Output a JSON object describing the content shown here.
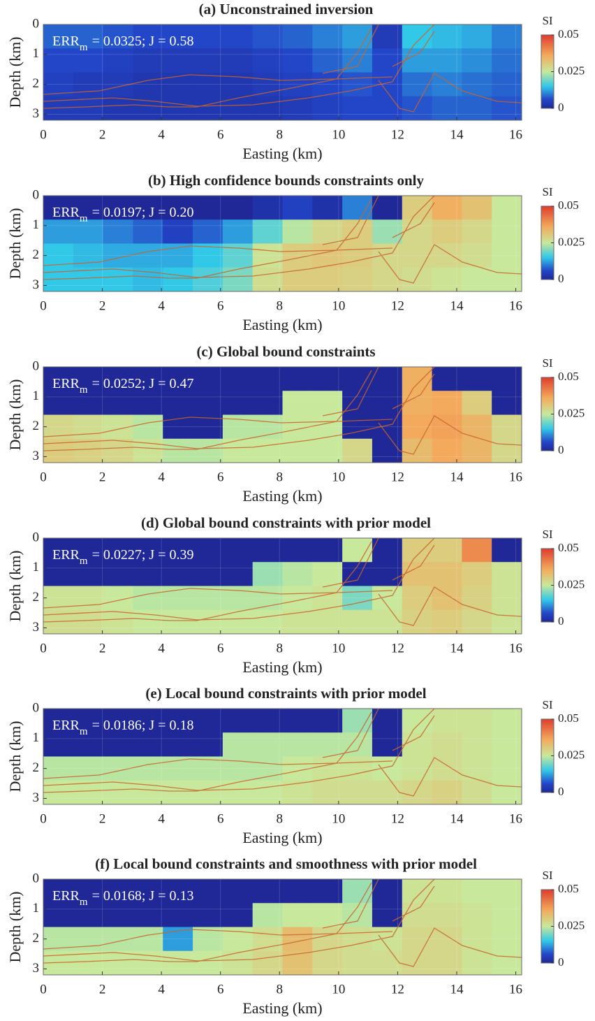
{
  "chart_data": [
    {
      "type": "heatmap",
      "title": "(a) Unconstrained inversion",
      "annotation": {
        "main": "ERR",
        "sub": "m",
        "rest": "= 0.0325;   J = 0.58"
      },
      "xlabel": "Easting (km)",
      "ylabel": "Depth (km)",
      "xlim": [
        0,
        16.2
      ],
      "xticks": [
        0,
        2,
        4,
        6,
        8,
        10,
        12,
        14,
        16
      ],
      "ylim": [
        3.2,
        0
      ],
      "yticks": [
        0,
        1,
        2,
        3
      ],
      "grid": true,
      "colormap": "jet",
      "colorbar": {
        "label": "SI",
        "lim": [
          0,
          0.05
        ],
        "ticks": [
          0,
          0.025,
          0.05
        ]
      },
      "values": [
        [
          0.008,
          0.008,
          0.007,
          0.006,
          0.006,
          0.006,
          0.006,
          0.007,
          0.008,
          0.01,
          0.012,
          0.004,
          0.015,
          0.014,
          0.013,
          0.01
        ],
        [
          0.006,
          0.006,
          0.005,
          0.004,
          0.004,
          0.004,
          0.004,
          0.005,
          0.006,
          0.008,
          0.01,
          0.006,
          0.012,
          0.012,
          0.011,
          0.009
        ],
        [
          0.005,
          0.004,
          0.004,
          0.003,
          0.003,
          0.003,
          0.003,
          0.004,
          0.005,
          0.006,
          0.007,
          0.006,
          0.009,
          0.01,
          0.009,
          0.008
        ],
        [
          0.004,
          0.004,
          0.003,
          0.003,
          0.003,
          0.003,
          0.003,
          0.003,
          0.004,
          0.005,
          0.006,
          0.006,
          0.007,
          0.008,
          0.008,
          0.007
        ]
      ]
    },
    {
      "type": "heatmap",
      "title": "(b) High confidence bounds constraints only",
      "annotation": {
        "main": "ERR",
        "sub": "m",
        "rest": "= 0.0197;   J = 0.20"
      },
      "xlabel": "Easting (km)",
      "ylabel": "Depth (km)",
      "xlim": [
        0,
        16.2
      ],
      "xticks": [
        0,
        2,
        4,
        6,
        8,
        10,
        12,
        14,
        16
      ],
      "ylim": [
        3.2,
        0
      ],
      "yticks": [
        0,
        1,
        2,
        3
      ],
      "grid": true,
      "colormap": "jet",
      "colorbar": {
        "label": "SI",
        "lim": [
          0,
          0.05
        ],
        "ticks": [
          0,
          0.025,
          0.05
        ]
      },
      "values": [
        [
          0,
          0,
          0,
          0,
          0,
          0,
          0,
          0.002,
          0.005,
          0.002,
          0.01,
          0,
          0.03,
          0.035,
          0.032,
          0.025
        ],
        [
          0.012,
          0.012,
          0.01,
          0.008,
          0.005,
          0.008,
          0.012,
          0.018,
          0.024,
          0.028,
          0.03,
          0.022,
          0.028,
          0.03,
          0.028,
          0.025
        ],
        [
          0.015,
          0.014,
          0.013,
          0.013,
          0.013,
          0.015,
          0.018,
          0.026,
          0.03,
          0.031,
          0.03,
          0.028,
          0.028,
          0.028,
          0.027,
          0.025
        ],
        [
          0.015,
          0.015,
          0.015,
          0.014,
          0.015,
          0.017,
          0.02,
          0.027,
          0.03,
          0.03,
          0.029,
          0.028,
          0.027,
          0.026,
          0.025,
          0.025
        ]
      ]
    },
    {
      "type": "heatmap",
      "title": "(c) Global bound constraints",
      "annotation": {
        "main": "ERR",
        "sub": "m",
        "rest": "= 0.0252;   J = 0.47"
      },
      "xlabel": "Easting (km)",
      "ylabel": "Depth (km)",
      "xlim": [
        0,
        16.2
      ],
      "xticks": [
        0,
        2,
        4,
        6,
        8,
        10,
        12,
        14,
        16
      ],
      "ylim": [
        3.2,
        0
      ],
      "yticks": [
        0,
        1,
        2,
        3
      ],
      "grid": true,
      "colormap": "jet",
      "colorbar": {
        "label": "SI",
        "lim": [
          0,
          0.05
        ],
        "ticks": [
          0,
          0.025,
          0.05
        ]
      },
      "values": [
        [
          0,
          0,
          0,
          0,
          0,
          0,
          0,
          0,
          0,
          0,
          0,
          0,
          0.035,
          0,
          0,
          0
        ],
        [
          0,
          0,
          0,
          0,
          0,
          0,
          0,
          0,
          0.025,
          0.025,
          0,
          0,
          0.035,
          0.036,
          0.03,
          0
        ],
        [
          0.028,
          0.027,
          0.026,
          0.024,
          0,
          0,
          0.024,
          0.024,
          0.025,
          0.025,
          0,
          0,
          0.036,
          0.037,
          0.034,
          0.028
        ],
        [
          0.03,
          0.029,
          0.028,
          0.026,
          0.024,
          0.024,
          0.025,
          0.025,
          0.025,
          0.025,
          0.028,
          0,
          0.033,
          0.036,
          0.034,
          0.028
        ]
      ]
    },
    {
      "type": "heatmap",
      "title": "(d) Global bound constraints with prior model",
      "annotation": {
        "main": "ERR",
        "sub": "m",
        "rest": "= 0.0227;   J = 0.39"
      },
      "xlabel": "Easting (km)",
      "ylabel": "Depth (km)",
      "xlim": [
        0,
        16.2
      ],
      "xticks": [
        0,
        2,
        4,
        6,
        8,
        10,
        12,
        14,
        16
      ],
      "ylim": [
        3.2,
        0
      ],
      "yticks": [
        0,
        1,
        2,
        3
      ],
      "grid": true,
      "colormap": "jet",
      "colorbar": {
        "label": "SI",
        "lim": [
          0,
          0.05
        ],
        "ticks": [
          0,
          0.025,
          0.05
        ]
      },
      "values": [
        [
          0,
          0,
          0,
          0,
          0,
          0,
          0,
          0,
          0,
          0,
          0.025,
          0,
          0.03,
          0.03,
          0.04,
          0
        ],
        [
          0,
          0,
          0,
          0,
          0,
          0,
          0,
          0.022,
          0.024,
          0.025,
          0,
          0,
          0.032,
          0.032,
          0.03,
          0.026
        ],
        [
          0.026,
          0.026,
          0.025,
          0.024,
          0.024,
          0.024,
          0.024,
          0.024,
          0.025,
          0.026,
          0.02,
          0.025,
          0.03,
          0.032,
          0.029,
          0.026
        ],
        [
          0.027,
          0.027,
          0.026,
          0.025,
          0.025,
          0.025,
          0.025,
          0.025,
          0.026,
          0.026,
          0.026,
          0.026,
          0.029,
          0.03,
          0.028,
          0.026
        ]
      ]
    },
    {
      "type": "heatmap",
      "title": "(e) Local bound constraints with prior model",
      "annotation": {
        "main": "ERR",
        "sub": "m",
        "rest": "= 0.0186;   J = 0.18"
      },
      "xlabel": "Easting (km)",
      "ylabel": "Depth (km)",
      "xlim": [
        0,
        16.2
      ],
      "xticks": [
        0,
        2,
        4,
        6,
        8,
        10,
        12,
        14,
        16
      ],
      "ylim": [
        3.2,
        0
      ],
      "yticks": [
        0,
        1,
        2,
        3
      ],
      "grid": true,
      "colormap": "jet",
      "colorbar": {
        "label": "SI",
        "lim": [
          0,
          0.05
        ],
        "ticks": [
          0,
          0.025,
          0.05
        ]
      },
      "values": [
        [
          0,
          0,
          0,
          0,
          0,
          0,
          0,
          0,
          0,
          0,
          0.022,
          0,
          0.025,
          0.026,
          0.026,
          0.025
        ],
        [
          0,
          0,
          0,
          0,
          0,
          0,
          0.024,
          0.024,
          0.024,
          0.024,
          0.024,
          0,
          0.026,
          0.027,
          0.026,
          0.025
        ],
        [
          0.024,
          0.024,
          0.024,
          0.024,
          0.024,
          0.024,
          0.024,
          0.024,
          0.025,
          0.026,
          0.026,
          0.025,
          0.026,
          0.027,
          0.026,
          0.025
        ],
        [
          0.025,
          0.025,
          0.025,
          0.025,
          0.025,
          0.025,
          0.025,
          0.025,
          0.026,
          0.027,
          0.027,
          0.027,
          0.028,
          0.029,
          0.027,
          0.025
        ]
      ]
    },
    {
      "type": "heatmap",
      "title": "(f) Local bound constraints and smoothness with prior model",
      "annotation": {
        "main": "ERR",
        "sub": "m",
        "rest": "= 0.0168;   J = 0.13"
      },
      "xlabel": "Easting (km)",
      "ylabel": "Depth (km)",
      "xlim": [
        0,
        16.2
      ],
      "xticks": [
        0,
        2,
        4,
        6,
        8,
        10,
        12,
        14,
        16
      ],
      "ylim": [
        3.2,
        0
      ],
      "yticks": [
        0,
        1,
        2,
        3
      ],
      "grid": true,
      "colormap": "jet",
      "colorbar": {
        "label": "SI",
        "lim": [
          0,
          0.05
        ],
        "ticks": [
          0,
          0.025,
          0.05
        ]
      },
      "values": [
        [
          0,
          0,
          0,
          0,
          0,
          0,
          0,
          0,
          0,
          0,
          0.022,
          0,
          0.026,
          0.026,
          0.025,
          0.025
        ],
        [
          0,
          0,
          0,
          0,
          0,
          0,
          0,
          0.024,
          0.025,
          0.025,
          0.024,
          0,
          0.027,
          0.027,
          0.026,
          0.025
        ],
        [
          0.024,
          0.024,
          0.024,
          0.024,
          0.012,
          0.024,
          0.025,
          0.027,
          0.033,
          0.028,
          0.027,
          0.026,
          0.028,
          0.028,
          0.026,
          0.025
        ],
        [
          0.025,
          0.025,
          0.025,
          0.025,
          0.025,
          0.025,
          0.026,
          0.028,
          0.032,
          0.028,
          0.027,
          0.027,
          0.028,
          0.028,
          0.026,
          0.025
        ]
      ]
    }
  ]
}
